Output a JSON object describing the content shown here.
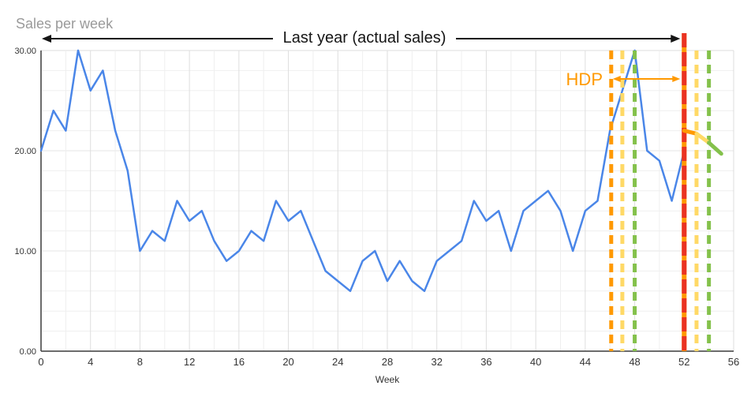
{
  "title": "Sales per week",
  "annotations": {
    "last_year_label": "Last year (actual sales)",
    "hdp_label": "HDP"
  },
  "colors": {
    "series_blue": "#4a86e8",
    "hdp_orange": "#ff9900",
    "pale_yellow": "#ffd966",
    "green": "#84c14b",
    "red": "#ea3323",
    "grid_minor": "#efefef",
    "grid_major_v": "#dedede",
    "grid_major_h": "#e5e5e5",
    "plot_border": "#dcdcdc",
    "axis": "#3c3c3c",
    "title_gray": "#9a9a9a",
    "annotation_black": "#151515",
    "tick_label": "#333333"
  },
  "chart_data": {
    "type": "line",
    "title": "Sales per week",
    "xlabel": "Week",
    "ylabel": "Sales per week",
    "xlim": [
      0,
      56
    ],
    "ylim": [
      0,
      30
    ],
    "x_ticks": [
      0,
      4,
      8,
      12,
      16,
      20,
      24,
      28,
      32,
      36,
      40,
      44,
      48,
      52,
      56
    ],
    "y_ticks": [
      0,
      10,
      20,
      30
    ],
    "y_tick_labels": [
      "0.00",
      "10.00",
      "20.00",
      "30.00"
    ],
    "grid": "minor gridlines every 2 units on both axes, legend none",
    "series": [
      {
        "name": "Last year (actual sales)",
        "color": "#4a86e8",
        "x_start": 0,
        "x_step": 1,
        "values": [
          20,
          24,
          22,
          30,
          26,
          28,
          22,
          18,
          10,
          12,
          11,
          15,
          13,
          14,
          11,
          9,
          10,
          12,
          11,
          15,
          13,
          14,
          11,
          8,
          7,
          6,
          9,
          10,
          7,
          9,
          7,
          6,
          9,
          10,
          11,
          15,
          13,
          14,
          10,
          14,
          15,
          16,
          14,
          10,
          14,
          15,
          22,
          26,
          30,
          20,
          19,
          15,
          20
        ]
      }
    ],
    "forecast": {
      "name": "HDP forecast",
      "points": [
        {
          "x": 52,
          "y": 22
        },
        {
          "x": 53,
          "y": 21.7
        },
        {
          "x": 54,
          "y": 20.8
        },
        {
          "x": 55,
          "y": 19.7
        }
      ],
      "segment_colors": [
        "#ff9900",
        "#ffd966",
        "#84c14b"
      ]
    },
    "vertical_lines": [
      {
        "x": 46.1,
        "color": "#ff9900",
        "style": "dashed",
        "width": 5
      },
      {
        "x": 47,
        "color": "#ffd966",
        "style": "dashed",
        "width": 5
      },
      {
        "x": 48,
        "color": "#84c14b",
        "style": "dashed",
        "width": 5
      },
      {
        "x": 52,
        "color": "#ea3323",
        "style": "dashed",
        "width": 6,
        "underlay": "#ff9900",
        "extends_above_plot": true
      },
      {
        "x": 53,
        "color": "#ffd966",
        "style": "dashed",
        "width": 5
      },
      {
        "x": 54,
        "color": "#84c14b",
        "style": "dashed",
        "width": 5
      }
    ],
    "hdp_span": {
      "from_week": 46.1,
      "to_week": 52
    },
    "last_year_span": {
      "from_week": 0,
      "to_week": 52
    }
  }
}
